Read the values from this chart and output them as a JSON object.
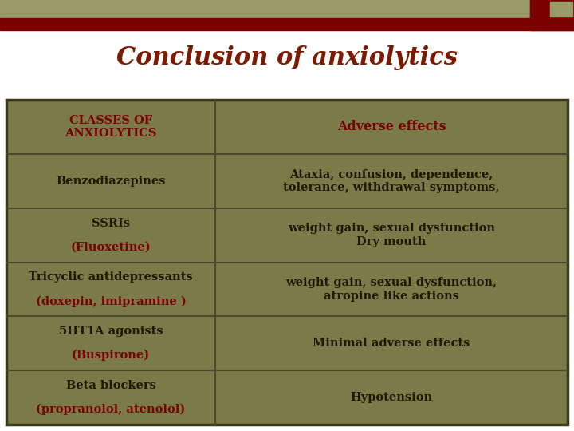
{
  "title": "Conclusion of anxiolytics",
  "title_color": "#7B1A00",
  "title_fontsize": 22,
  "background_color": "#FFFFFF",
  "bar_tan_color": "#9B9B6A",
  "bar_red_color": "#7B0000",
  "table_bg_color": "#7B7B4A",
  "table_border_color": "#3A3A1A",
  "cell_line_color": "#4A4A2A",
  "text_dark": "#1A1A00",
  "text_red": "#7B0000",
  "col1_header": "CLASSES OF\nANXIOLYTICS",
  "col2_header": "Adverse effects",
  "rows": [
    {
      "col1_line1": "Benzodiazepines",
      "col1_line1_color": "dark",
      "col1_line2": "",
      "col1_line2_color": "dark",
      "col2": "Ataxia, confusion, dependence,\ntolerance, withdrawal symptoms,"
    },
    {
      "col1_line1": "SSRIs",
      "col1_line1_color": "dark",
      "col1_line2": "(Fluoxetine)",
      "col1_line2_color": "red",
      "col2": "weight gain, sexual dysfunction\nDry mouth"
    },
    {
      "col1_line1": "Tricyclic antidepressants",
      "col1_line1_color": "dark",
      "col1_line2": "(doxepin, imipramine )",
      "col1_line2_color": "red",
      "col2": "weight gain, sexual dysfunction,\natropine like actions"
    },
    {
      "col1_line1": "5HT1A agonists",
      "col1_line1_color": "dark",
      "col1_line2": "(Buspirone)",
      "col1_line2_color": "red",
      "col2": "Minimal adverse effects"
    },
    {
      "col1_line1": "Beta blockers",
      "col1_line1_color": "dark",
      "col1_line2": "(propranolol, atenolol)",
      "col1_line2_color": "red",
      "col2": "Hypotension"
    }
  ]
}
